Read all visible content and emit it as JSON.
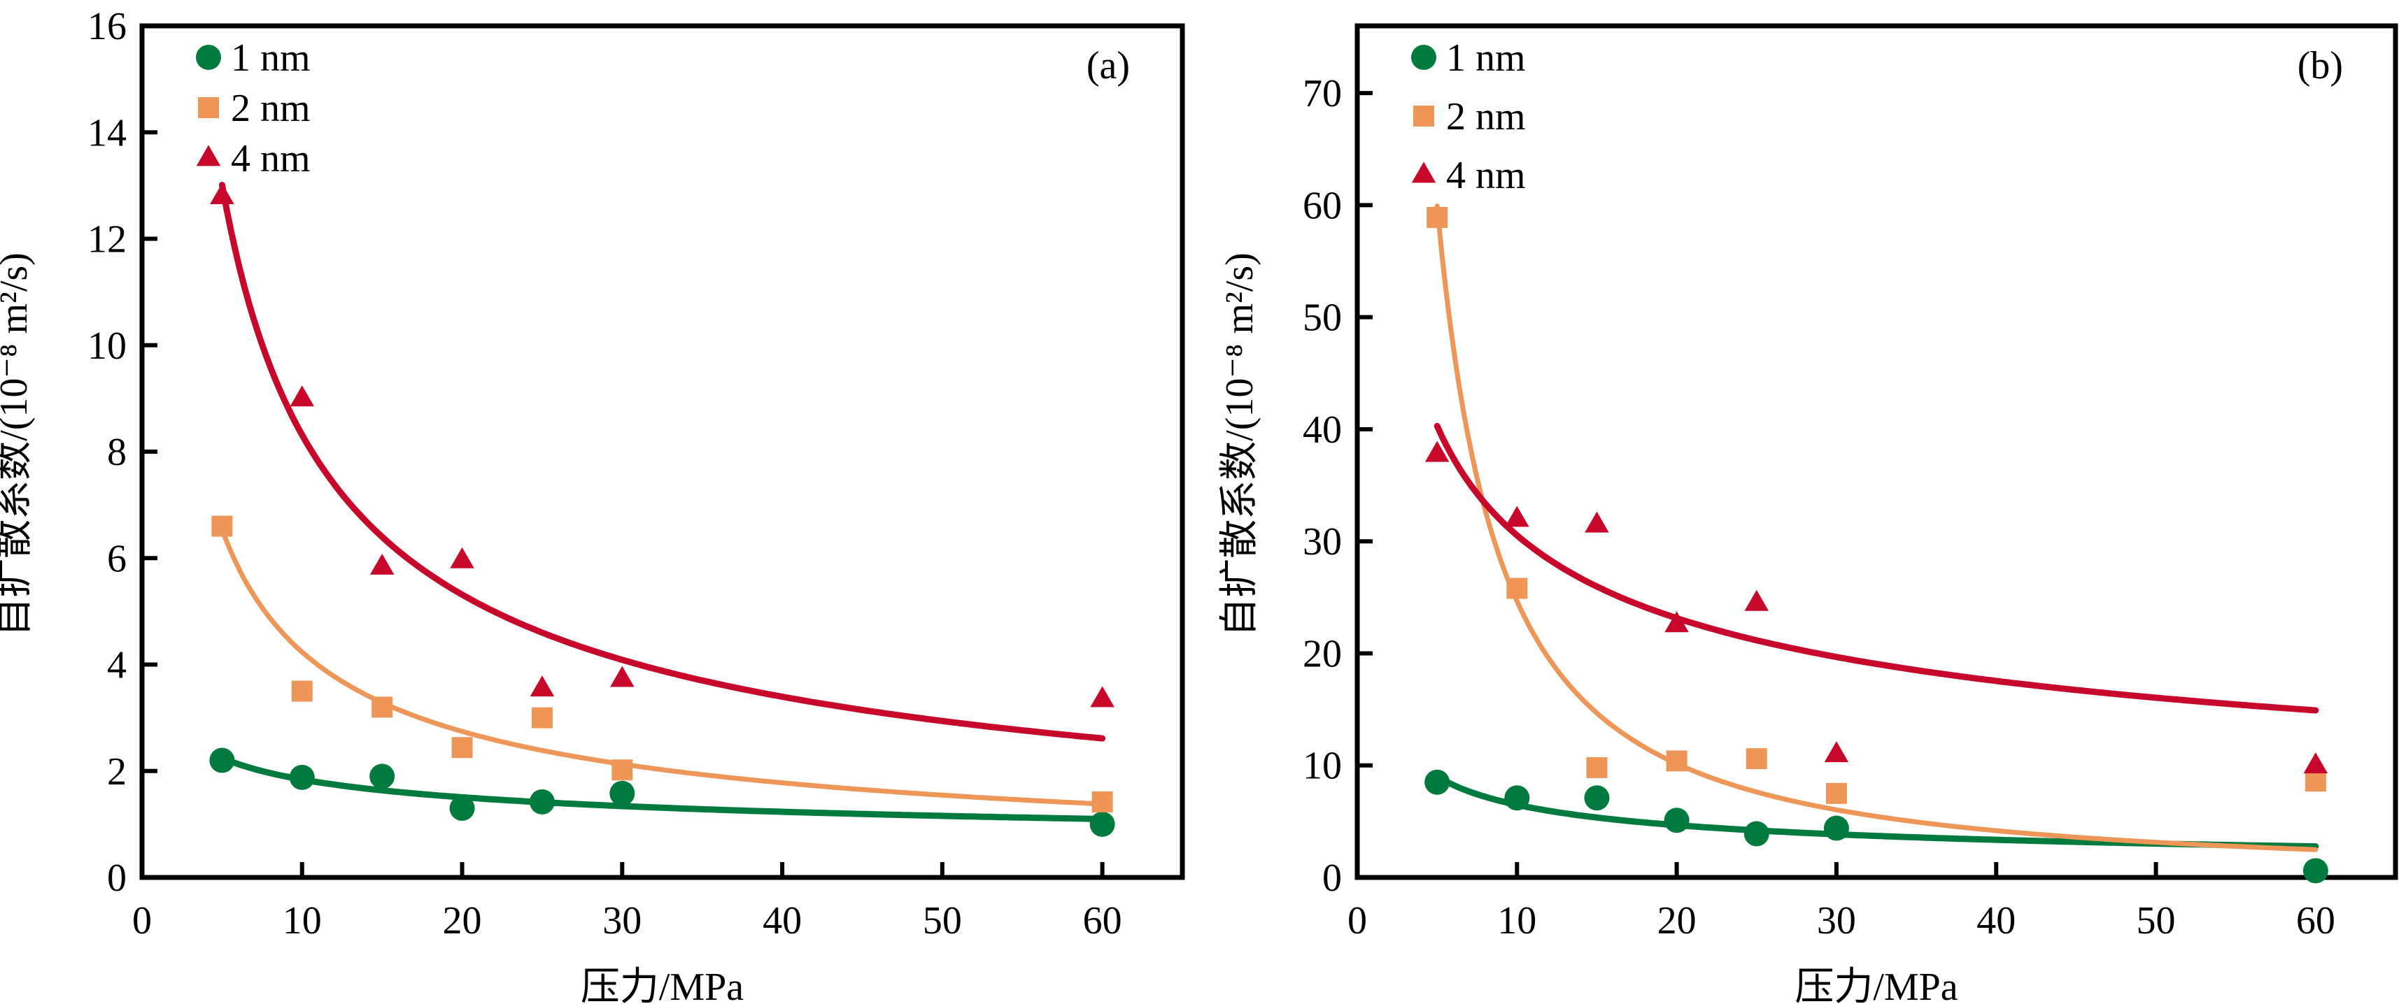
{
  "chart_data": [
    {
      "type": "scatter",
      "panel_label": "(a)",
      "xlabel": "压力/MPa",
      "ylabel": "自扩散系数/(10⁻⁸ m²/s)",
      "xlim": [
        0,
        65
      ],
      "ylim": [
        0,
        16
      ],
      "xticks": [
        0,
        10,
        20,
        30,
        40,
        50,
        60
      ],
      "yticks": [
        0,
        2,
        4,
        6,
        8,
        10,
        12,
        14,
        16
      ],
      "grid": false,
      "legend_position": "top-left",
      "series": [
        {
          "name": "1 nm",
          "marker": "circle",
          "color": "#007A3D",
          "x": [
            5,
            10,
            15,
            20,
            25,
            30,
            60
          ],
          "y": [
            2.2,
            1.88,
            1.9,
            1.3,
            1.42,
            1.58,
            1.0
          ],
          "fit": {
            "form": "power",
            "a": 3.57,
            "b": -0.288,
            "x_range": [
              5,
              60
            ]
          }
        },
        {
          "name": "2 nm",
          "marker": "square",
          "color": "#EE9657",
          "x": [
            5,
            10,
            15,
            20,
            25,
            30,
            60
          ],
          "y": [
            6.6,
            3.5,
            3.2,
            2.44,
            3.0,
            2.02,
            1.42
          ],
          "fit": {
            "form": "power",
            "a": 17.9,
            "b": -0.626,
            "x_range": [
              5,
              60
            ]
          }
        },
        {
          "name": "4 nm",
          "marker": "triangle",
          "color": "#C8082A",
          "x": [
            5,
            10,
            15,
            20,
            25,
            30,
            60
          ],
          "y": [
            12.8,
            9.0,
            5.84,
            5.96,
            3.55,
            3.73,
            3.35
          ],
          "fit": {
            "form": "power",
            "a": 36.8,
            "b": -0.646,
            "x_range": [
              5,
              60
            ]
          }
        }
      ]
    },
    {
      "type": "scatter",
      "panel_label": "(b)",
      "xlabel": "压力/MPa",
      "ylabel": "自扩散系数/(10⁻⁸ m²/s)",
      "xlim": [
        0,
        65
      ],
      "ylim": [
        0,
        76
      ],
      "xticks": [
        0,
        10,
        20,
        30,
        40,
        50,
        60
      ],
      "yticks": [
        0,
        10,
        20,
        30,
        40,
        50,
        60,
        70
      ],
      "grid": false,
      "legend_position": "top-left",
      "series": [
        {
          "name": "1 nm",
          "marker": "circle",
          "color": "#007A3D",
          "x": [
            5,
            10,
            15,
            20,
            25,
            30,
            60
          ],
          "y": [
            8.5,
            7.1,
            7.1,
            5.1,
            3.9,
            4.4,
            0.6
          ],
          "fit": {
            "form": "power",
            "a": 19.3,
            "b": -0.474,
            "x_range": [
              5,
              60
            ]
          }
        },
        {
          "name": "2 nm",
          "marker": "square",
          "color": "#EE9657",
          "x": [
            5,
            10,
            15,
            20,
            25,
            30,
            60
          ],
          "y": [
            58.9,
            25.8,
            9.8,
            10.4,
            10.6,
            7.5,
            8.6
          ],
          "fit": {
            "form": "power",
            "a": 471,
            "b": -1.281,
            "x_range": [
              5,
              60
            ]
          }
        },
        {
          "name": "4 nm",
          "marker": "triangle",
          "color": "#C8082A",
          "x": [
            5,
            10,
            15,
            20,
            25,
            30,
            60
          ],
          "y": [
            37.8,
            32.0,
            31.5,
            22.6,
            24.5,
            11.0,
            10.0
          ],
          "fit": {
            "form": "power",
            "a": 76.7,
            "b": -0.4,
            "x_range": [
              5,
              60
            ]
          }
        }
      ]
    }
  ]
}
